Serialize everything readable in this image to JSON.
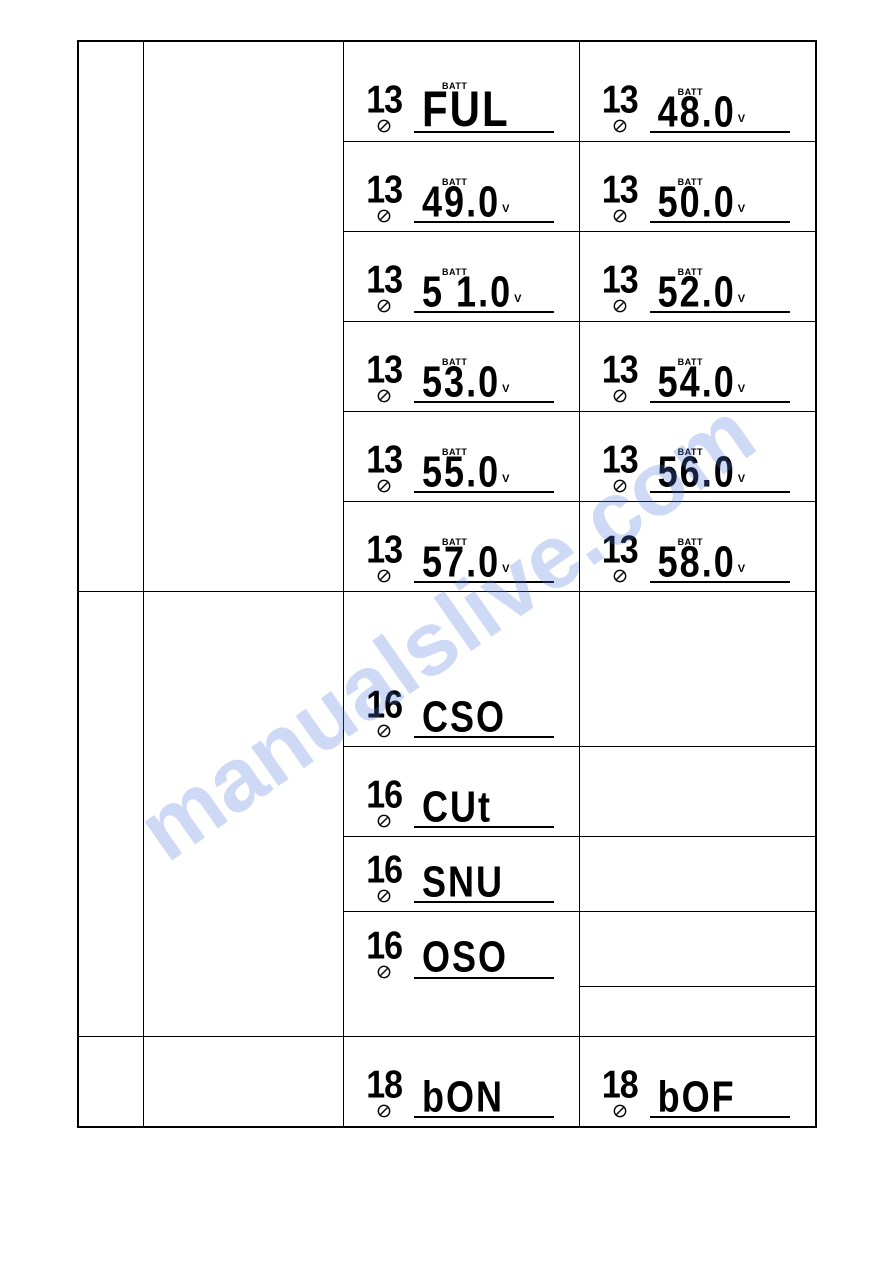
{
  "watermark": "manualslive.com",
  "batt_label": "BATT",
  "volt_unit": "V",
  "section1": {
    "idx": "13",
    "cells": [
      {
        "val": "FUL",
        "batt": true,
        "volt": false,
        "big": true
      },
      {
        "val": "48.0",
        "batt": true,
        "volt": true
      },
      {
        "val": "49.0",
        "batt": true,
        "volt": true
      },
      {
        "val": "50.0",
        "batt": true,
        "volt": true
      },
      {
        "val": "5 1.0",
        "batt": true,
        "volt": true
      },
      {
        "val": "52.0",
        "batt": true,
        "volt": true
      },
      {
        "val": "53.0",
        "batt": true,
        "volt": true
      },
      {
        "val": "54.0",
        "batt": true,
        "volt": true
      },
      {
        "val": "55.0",
        "batt": true,
        "volt": true
      },
      {
        "val": "56.0",
        "batt": true,
        "volt": true
      },
      {
        "val": "57.0",
        "batt": true,
        "volt": true
      },
      {
        "val": "58.0",
        "batt": true,
        "volt": true
      }
    ]
  },
  "section2": {
    "idx": "16",
    "cells": [
      {
        "val": "CSO"
      },
      {
        "val": "CUt"
      },
      {
        "val": "SNU"
      },
      {
        "val": "OSO"
      }
    ]
  },
  "section3": {
    "idx": "18",
    "cells": [
      {
        "val": "bON"
      },
      {
        "val": "bOF"
      }
    ]
  }
}
